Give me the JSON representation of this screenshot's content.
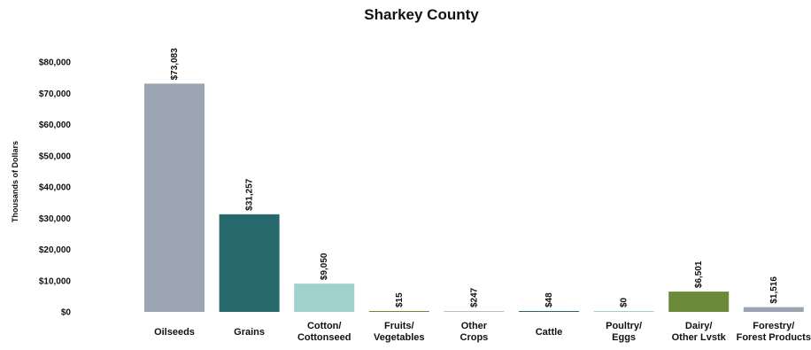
{
  "chart_data": {
    "type": "bar",
    "title": "Sharkey County",
    "ylabel": "Thousands of Dollars",
    "xlabel": "",
    "ylim": [
      0,
      80000
    ],
    "yticks": [
      0,
      10000,
      20000,
      30000,
      40000,
      50000,
      60000,
      70000,
      80000
    ],
    "ytick_labels": [
      "$0",
      "$10,000",
      "$20,000",
      "$30,000",
      "$40,000",
      "$50,000",
      "$60,000",
      "$70,000",
      "$80,000"
    ],
    "categories": [
      [
        "Oilseeds"
      ],
      [
        "Grains"
      ],
      [
        "Cotton/",
        "Cottonseed"
      ],
      [
        "Fruits/",
        "Vegetables"
      ],
      [
        "Other",
        "Crops"
      ],
      [
        "Cattle"
      ],
      [
        "Poultry/",
        "Eggs"
      ],
      [
        "Dairy/",
        "Other Lvstk"
      ],
      [
        "Forestry/",
        "Forest Products"
      ]
    ],
    "values": [
      73083,
      31257,
      9050,
      15,
      247,
      48,
      0,
      6501,
      1516
    ],
    "data_labels": [
      "$73,083",
      "$31,257",
      "$9,050",
      "$15",
      "$247",
      "$48",
      "$0",
      "$6,501",
      "$1,516"
    ],
    "colors": [
      "#9aa5b1",
      "#26686b",
      "#a1d1cc",
      "#6b8a3a",
      "#b8bdc3",
      "#26686b",
      "#a1d1cc",
      "#6b8a3a",
      "#9aa5b1"
    ],
    "grid": false,
    "legend": "none"
  }
}
